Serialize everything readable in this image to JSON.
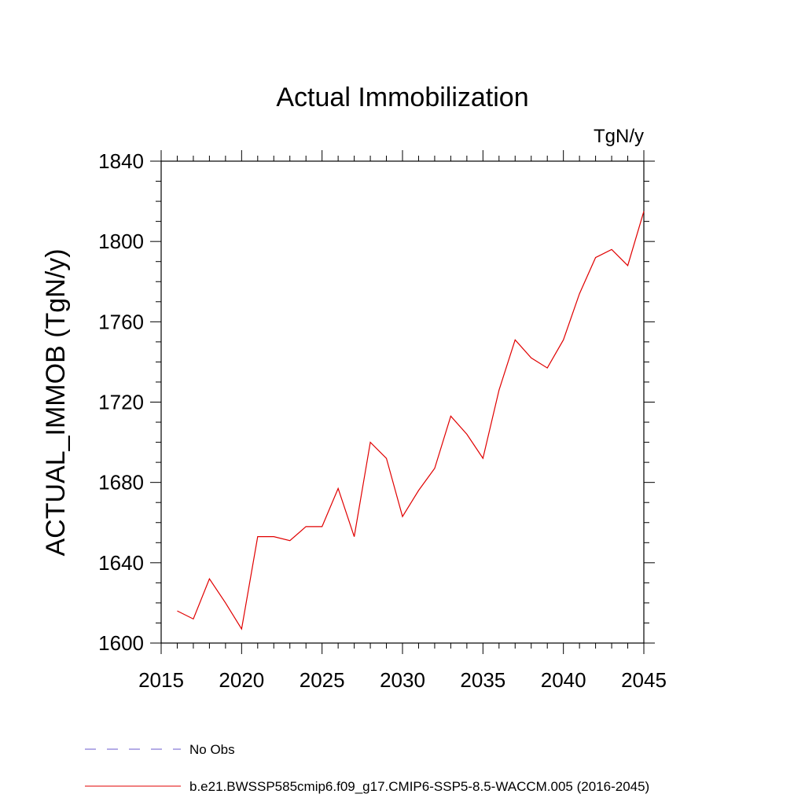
{
  "chart_data": {
    "type": "line",
    "title": "Actual Immobilization",
    "units_label": "TgN/y",
    "xlabel": "",
    "ylabel": "ACTUAL_IMMOB  (TgN/y)",
    "xlim": [
      2015,
      2045
    ],
    "ylim": [
      1600,
      1840
    ],
    "x_ticks": [
      2015,
      2020,
      2025,
      2030,
      2035,
      2040,
      2045
    ],
    "y_ticks": [
      1600,
      1640,
      1680,
      1720,
      1760,
      1800,
      1840
    ],
    "x_minor_step": 1,
    "y_minor_step": 10,
    "grid": false,
    "legend_position": "bottom",
    "series": [
      {
        "name": "b.e21.BWSSP585cmip6.f09_g17.CMIP6-SSP5-8.5-WACCM.005 (2016-2045)",
        "color": "#e00000",
        "dash": "solid",
        "x": [
          2016,
          2017,
          2018,
          2019,
          2020,
          2021,
          2022,
          2023,
          2024,
          2025,
          2026,
          2027,
          2028,
          2029,
          2030,
          2031,
          2032,
          2033,
          2034,
          2035,
          2036,
          2037,
          2038,
          2039,
          2040,
          2041,
          2042,
          2043,
          2044,
          2045
        ],
        "values": [
          1616,
          1612,
          1632,
          1620,
          1607,
          1653,
          1653,
          1651,
          1658,
          1658,
          1677,
          1653,
          1700,
          1692,
          1663,
          1676,
          1687,
          1713,
          1704,
          1692,
          1726,
          1751,
          1742,
          1737,
          1751,
          1774,
          1792,
          1796,
          1788,
          1815
        ]
      }
    ],
    "legend": [
      {
        "label": "No Obs",
        "color": "#6a5acd",
        "dash": "dashed"
      },
      {
        "label": "b.e21.BWSSP585cmip6.f09_g17.CMIP6-SSP5-8.5-WACCM.005 (2016-2045)",
        "color": "#e00000",
        "dash": "solid"
      }
    ]
  }
}
